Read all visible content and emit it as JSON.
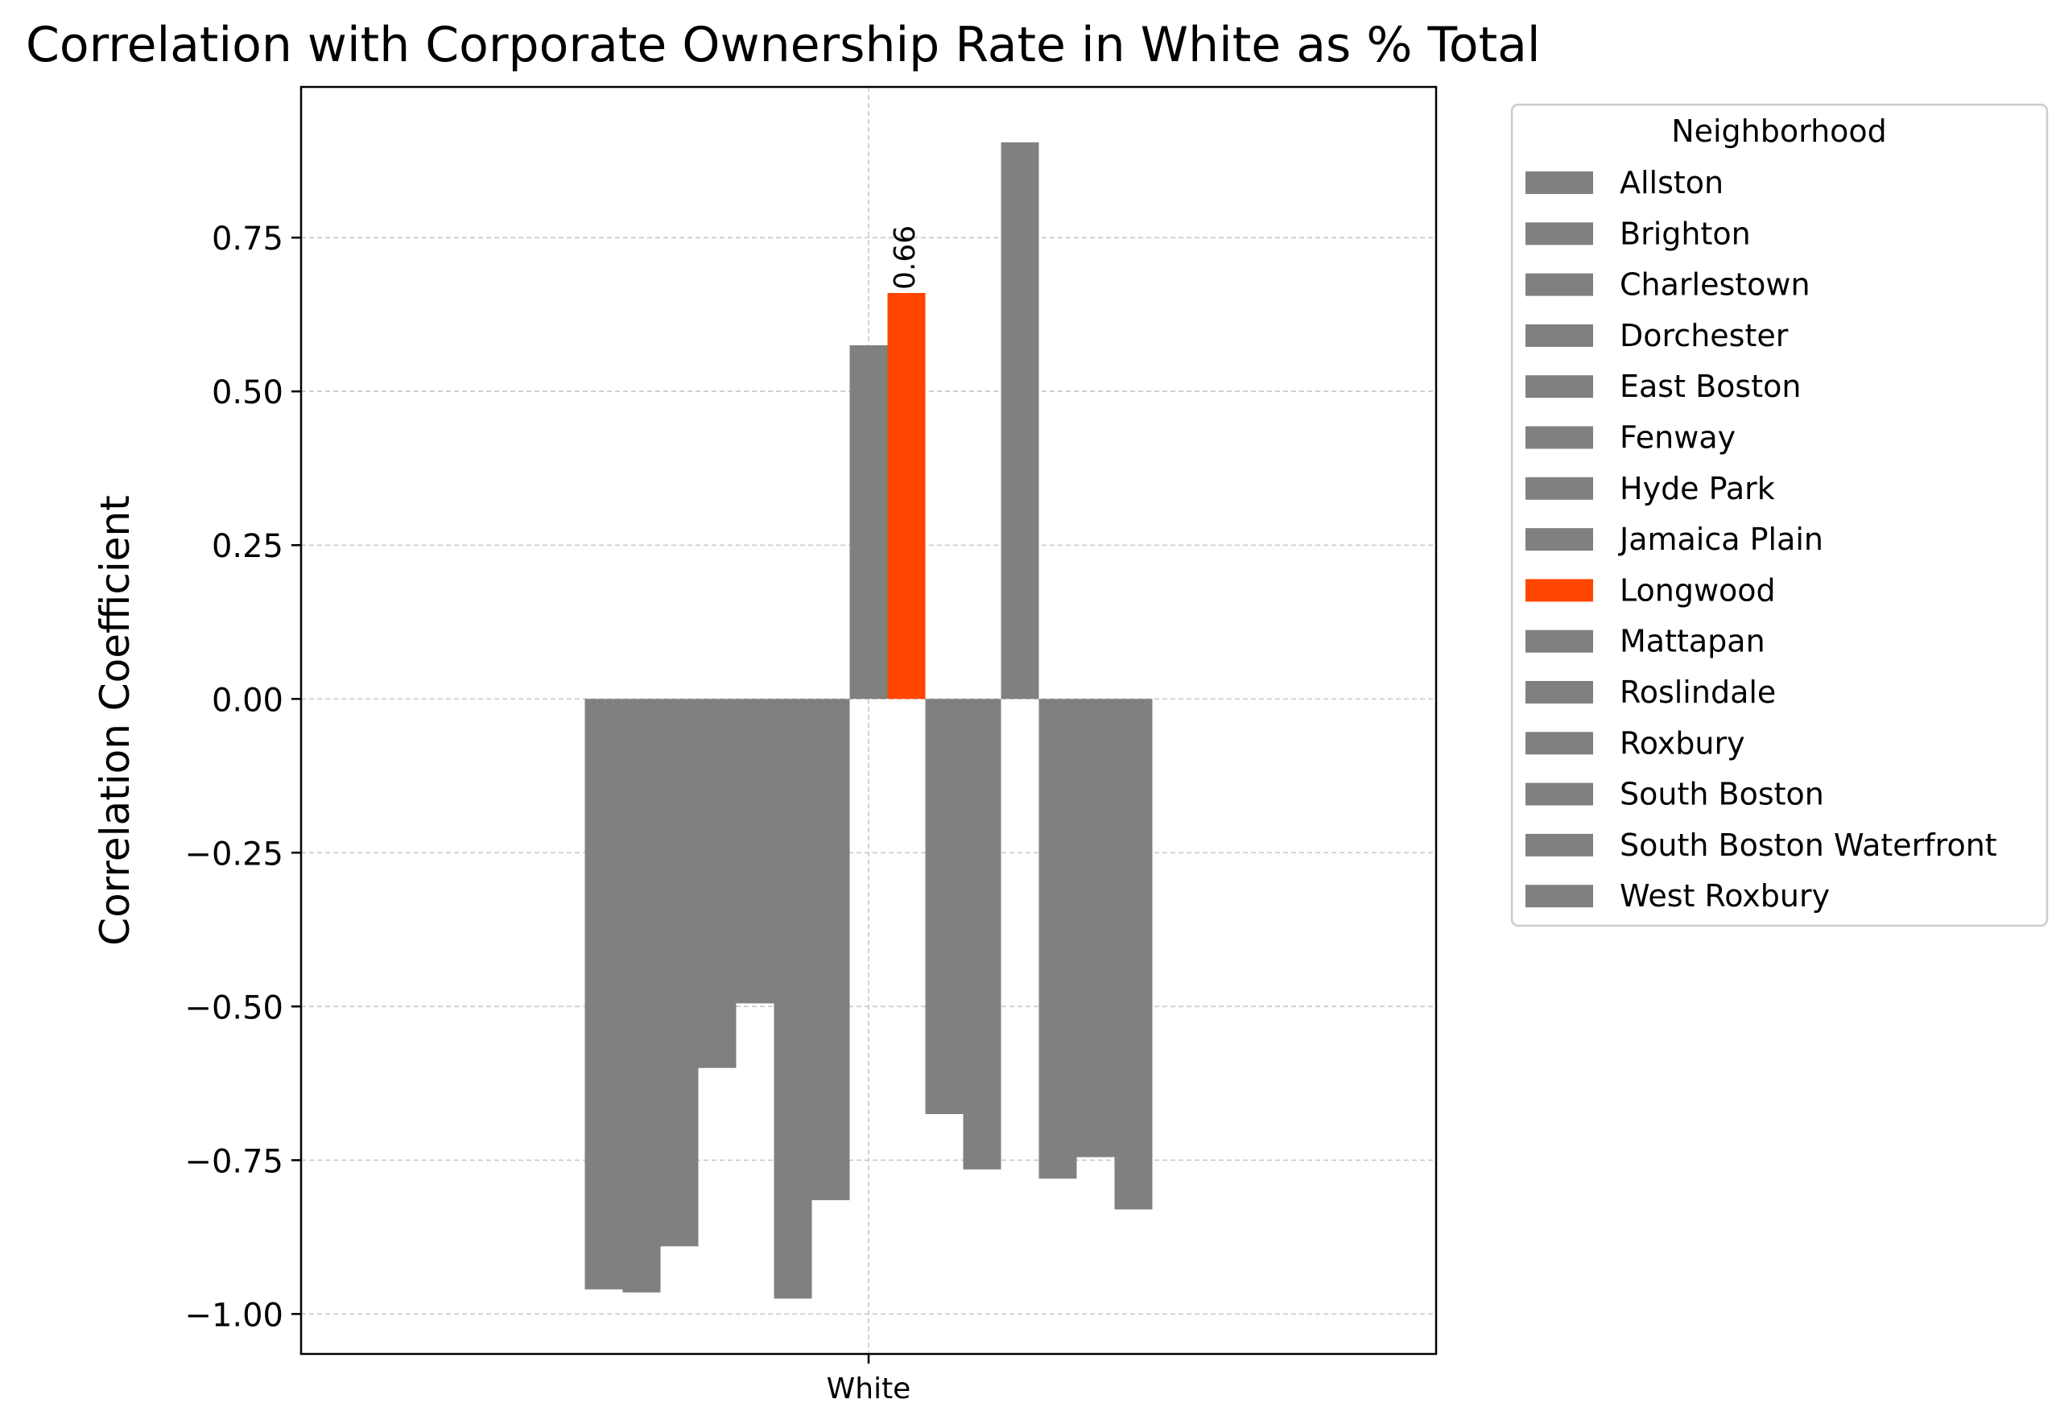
{
  "chart_data": {
    "type": "bar",
    "title": "Correlation with Corporate Ownership Rate in White as % Total",
    "xlabel": "",
    "ylabel": "Correlation Coefficient",
    "categories": [
      "White"
    ],
    "ylim": [
      -1.065,
      0.995
    ],
    "yticks": [
      -1.0,
      -0.75,
      -0.5,
      -0.25,
      0.0,
      0.25,
      0.5,
      0.75
    ],
    "ytick_labels": [
      "−1.00",
      "−0.75",
      "−0.50",
      "−0.25",
      "0.00",
      "0.25",
      "0.50",
      "0.75"
    ],
    "grid": true,
    "legend": {
      "title": "Neighborhood",
      "placement": "outside-right"
    },
    "highlight_color": "#ff4500",
    "base_color": "#808080",
    "series": [
      {
        "name": "Allston",
        "values": [
          -0.96
        ]
      },
      {
        "name": "Brighton",
        "values": [
          -0.965
        ]
      },
      {
        "name": "Charlestown",
        "values": [
          -0.89
        ]
      },
      {
        "name": "Dorchester",
        "values": [
          -0.6
        ]
      },
      {
        "name": "East Boston",
        "values": [
          -0.495
        ]
      },
      {
        "name": "Fenway",
        "values": [
          -0.975
        ]
      },
      {
        "name": "Hyde Park",
        "values": [
          -0.815
        ]
      },
      {
        "name": "Jamaica Plain",
        "values": [
          0.575
        ]
      },
      {
        "name": "Longwood",
        "values": [
          0.66
        ],
        "highlight": true,
        "label": "0.66"
      },
      {
        "name": "Mattapan",
        "values": [
          -0.675
        ]
      },
      {
        "name": "Roslindale",
        "values": [
          -0.765
        ]
      },
      {
        "name": "Roxbury",
        "values": [
          0.905
        ]
      },
      {
        "name": "South Boston",
        "values": [
          -0.78
        ]
      },
      {
        "name": "South Boston Waterfront",
        "values": [
          -0.745
        ]
      },
      {
        "name": "West Roxbury",
        "values": [
          -0.83
        ]
      }
    ]
  }
}
